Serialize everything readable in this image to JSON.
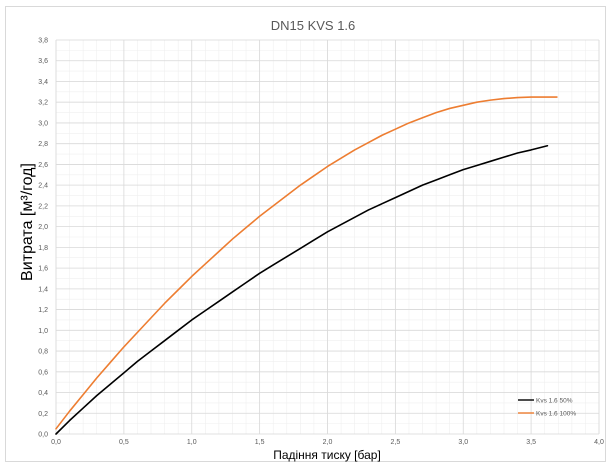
{
  "chart_data": {
    "type": "line",
    "title": "DN15 KVS 1.6",
    "xlabel": "Падіння тиску [бар]",
    "ylabel": "Витрата [м³/год]",
    "xlim": [
      0,
      4.0
    ],
    "ylim": [
      0,
      3.8
    ],
    "x_ticks": [
      "0,0",
      "0,5",
      "1,0",
      "1,5",
      "2,0",
      "2,5",
      "3,0",
      "3,5",
      "4,0"
    ],
    "y_ticks": [
      "0,0",
      "0,2",
      "0,4",
      "0,6",
      "0,8",
      "1,0",
      "1,2",
      "1,4",
      "1,6",
      "1,8",
      "2,0",
      "2,2",
      "2,4",
      "2,6",
      "2,8",
      "3,0",
      "3,2",
      "3,4",
      "3,6",
      "3,8"
    ],
    "grid": true,
    "minor_grid": true,
    "legend_position": "bottom-right",
    "series": [
      {
        "name": "Kvs 1.6 50%",
        "color": "#000000",
        "x": [
          0.0,
          0.1,
          0.2,
          0.3,
          0.4,
          0.5,
          0.6,
          0.7,
          0.8,
          0.9,
          1.0,
          1.1,
          1.2,
          1.3,
          1.4,
          1.5,
          1.6,
          1.7,
          1.8,
          1.9,
          2.0,
          2.1,
          2.2,
          2.3,
          2.4,
          2.5,
          2.6,
          2.7,
          2.8,
          2.9,
          3.0,
          3.1,
          3.2,
          3.3,
          3.4,
          3.5,
          3.62
        ],
        "y": [
          0.0,
          0.13,
          0.25,
          0.37,
          0.48,
          0.59,
          0.7,
          0.8,
          0.9,
          1.0,
          1.1,
          1.19,
          1.28,
          1.37,
          1.46,
          1.55,
          1.63,
          1.71,
          1.79,
          1.87,
          1.95,
          2.02,
          2.09,
          2.16,
          2.22,
          2.28,
          2.34,
          2.4,
          2.45,
          2.5,
          2.55,
          2.59,
          2.63,
          2.67,
          2.71,
          2.74,
          2.78
        ]
      },
      {
        "name": "Kvs 1.6 100%",
        "color": "#ed7d31",
        "x": [
          0.0,
          0.1,
          0.2,
          0.3,
          0.4,
          0.5,
          0.6,
          0.7,
          0.8,
          0.9,
          1.0,
          1.1,
          1.2,
          1.3,
          1.4,
          1.5,
          1.6,
          1.7,
          1.8,
          1.9,
          2.0,
          2.1,
          2.2,
          2.3,
          2.4,
          2.5,
          2.6,
          2.7,
          2.8,
          2.9,
          3.0,
          3.1,
          3.2,
          3.3,
          3.4,
          3.5,
          3.6,
          3.69
        ],
        "y": [
          0.05,
          0.22,
          0.38,
          0.54,
          0.69,
          0.84,
          0.98,
          1.12,
          1.26,
          1.39,
          1.52,
          1.64,
          1.76,
          1.88,
          1.99,
          2.1,
          2.2,
          2.3,
          2.4,
          2.49,
          2.58,
          2.66,
          2.74,
          2.81,
          2.88,
          2.94,
          3.0,
          3.05,
          3.1,
          3.14,
          3.17,
          3.2,
          3.22,
          3.235,
          3.245,
          3.25,
          3.25,
          3.25
        ]
      }
    ]
  }
}
